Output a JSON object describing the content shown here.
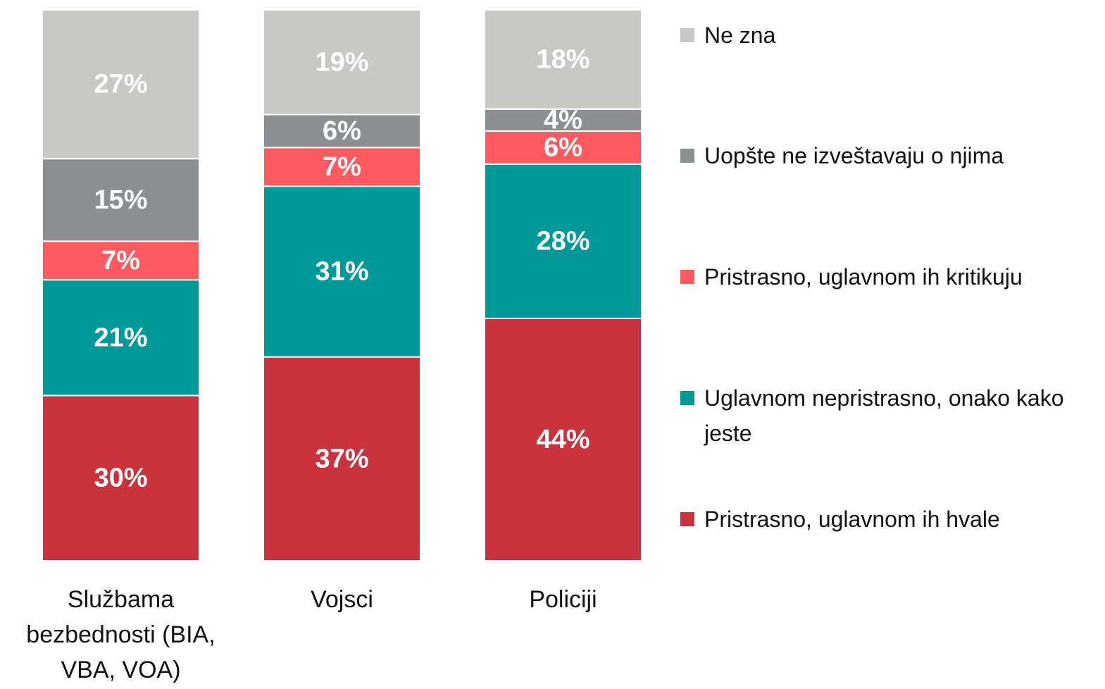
{
  "chart_data": {
    "type": "stacked_bar",
    "categories": [
      "Službama bezbednosti (BIA, VBA, VOA)",
      "Vojsci",
      "Policiji"
    ],
    "ylim": [
      0,
      100
    ],
    "series": [
      {
        "name": "Pristrasno, uglavnom ih hvale",
        "color": "#c9343c",
        "values": [
          30,
          37,
          44
        ],
        "value_labels": [
          "30%",
          "37%",
          "44%"
        ]
      },
      {
        "name": "Uglavnom nepristrasno, onako kako jeste",
        "color": "#009999",
        "values": [
          21,
          31,
          28
        ],
        "value_labels": [
          "21%",
          "31%",
          "28%"
        ]
      },
      {
        "name": "Pristrasno, uglavnom ih kritikuju",
        "color": "#ff5a5f",
        "values": [
          7,
          7,
          6
        ],
        "value_labels": [
          "7%",
          "7%",
          "6%"
        ]
      },
      {
        "name": "Uopšte ne izveštavaju o njima",
        "color": "#8c8f92",
        "values": [
          15,
          6,
          4
        ],
        "value_labels": [
          "15%",
          "6%",
          "4%"
        ]
      },
      {
        "name": "Ne zna",
        "color": "#c8c8c6",
        "values": [
          27,
          19,
          18
        ],
        "value_labels": [
          "27%",
          "19%",
          "18%"
        ]
      }
    ],
    "legend": "right"
  }
}
